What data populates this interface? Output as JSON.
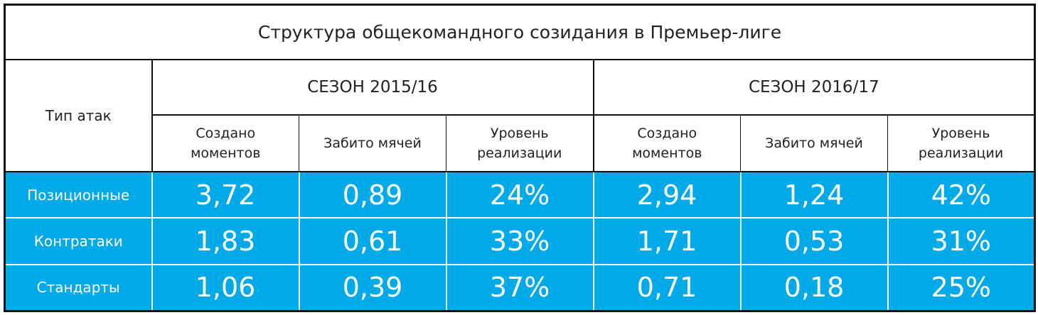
{
  "title": "Структура общекомандного созидания в Премьер-лиге",
  "header": {
    "row_label": "Тип атак",
    "seasons": [
      {
        "name": "СЕЗОН 2015/16",
        "columns": [
          [
            "Создано",
            "моментов"
          ],
          [
            "Забито мячей"
          ],
          [
            "Уровень",
            "реализации"
          ]
        ]
      },
      {
        "name": "СЕЗОН 2016/17",
        "columns": [
          [
            "Создано",
            "моментов"
          ],
          [
            "Забито мячей"
          ],
          [
            "Уровень",
            "реализации"
          ]
        ]
      }
    ]
  },
  "rows": [
    {
      "label": "Позиционные",
      "cells": [
        "3,72",
        "0,89",
        "24%",
        "2,94",
        "1,24",
        "42%"
      ]
    },
    {
      "label": "Контратаки",
      "cells": [
        "1,83",
        "0,61",
        "33%",
        "1,71",
        "0,53",
        "31%"
      ]
    },
    {
      "label": "Стандарты",
      "cells": [
        "1,06",
        "0,39",
        "37%",
        "0,71",
        "0,18",
        "25%"
      ]
    }
  ]
}
